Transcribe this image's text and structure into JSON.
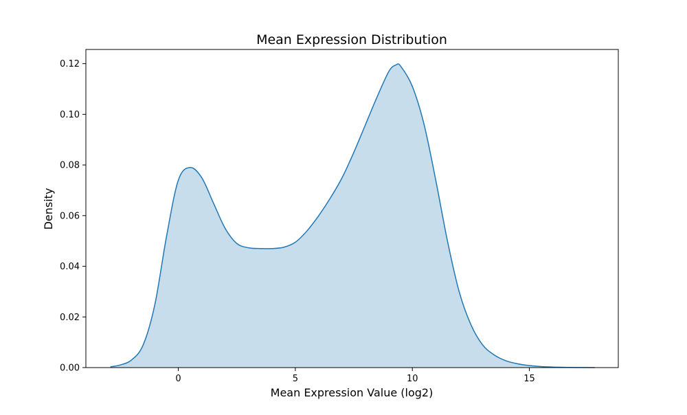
{
  "chart_data": {
    "type": "area",
    "title": "Mean Expression Distribution",
    "xlabel": "Mean Expression Value (log2)",
    "ylabel": "Density",
    "xlim": [
      -3.95,
      18.8
    ],
    "ylim": [
      0,
      0.1256
    ],
    "xticks": [
      0,
      5,
      10,
      15
    ],
    "yticks": [
      0.0,
      0.02,
      0.04,
      0.06,
      0.08,
      0.1,
      0.12
    ],
    "ytick_labels": [
      "0.00",
      "0.02",
      "0.04",
      "0.06",
      "0.08",
      "0.10",
      "0.12"
    ],
    "grid": false,
    "legend": "none",
    "series": [
      {
        "color": "#1f77b4",
        "fill_color": "#1f77b4",
        "fill_opacity": 0.25,
        "x": [
          -2.9,
          -2.5,
          -2.0,
          -1.5,
          -1.0,
          -0.5,
          0.0,
          0.5,
          1.0,
          1.5,
          2.0,
          2.5,
          3.0,
          3.5,
          4.0,
          4.5,
          5.0,
          5.5,
          6.0,
          6.5,
          7.0,
          7.5,
          8.0,
          8.5,
          9.0,
          9.3,
          9.5,
          10.0,
          10.5,
          11.0,
          11.5,
          12.0,
          12.5,
          13.0,
          13.5,
          14.0,
          14.5,
          15.0,
          15.5,
          16.0,
          16.5,
          17.0,
          17.8
        ],
        "y": [
          0.0003,
          0.001,
          0.003,
          0.009,
          0.025,
          0.052,
          0.074,
          0.079,
          0.075,
          0.065,
          0.055,
          0.049,
          0.0473,
          0.047,
          0.047,
          0.0475,
          0.0495,
          0.054,
          0.06,
          0.067,
          0.075,
          0.085,
          0.096,
          0.107,
          0.117,
          0.1195,
          0.119,
          0.111,
          0.096,
          0.074,
          0.05,
          0.03,
          0.017,
          0.009,
          0.005,
          0.0027,
          0.0015,
          0.0008,
          0.0004,
          0.0002,
          0.0001,
          5e-05,
          0.0
        ]
      }
    ]
  }
}
